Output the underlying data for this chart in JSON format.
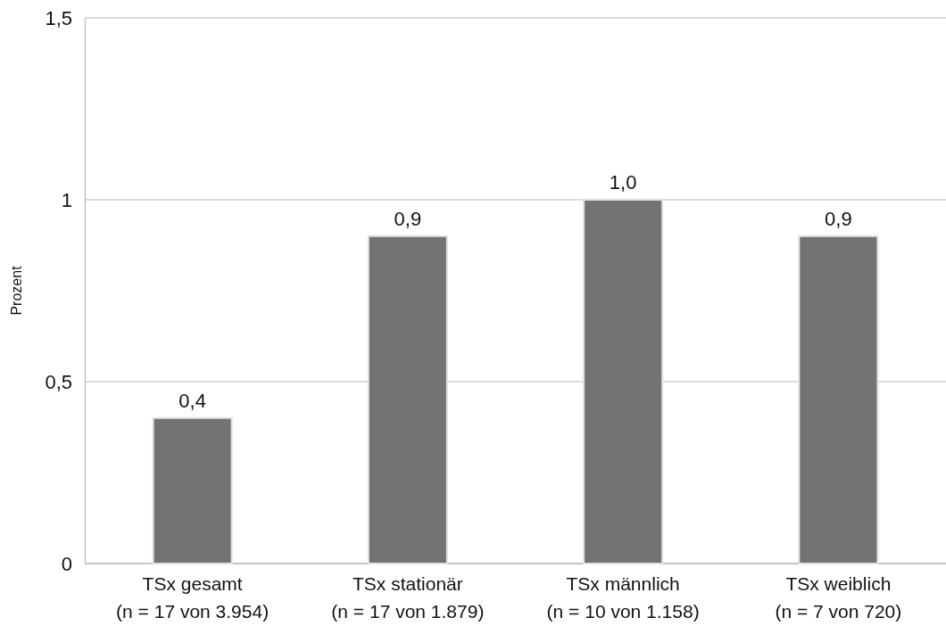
{
  "chart_data": {
    "type": "bar",
    "ylabel": "Prozent",
    "categories": [
      "TSx gesamt\n(n = 17 von 3.954)",
      "TSx stationär\n(n = 17 von 1.879)",
      "TSx männlich\n(n = 10 von 1.158)",
      "TSx weiblich\n(n = 7 von 720)"
    ],
    "values": [
      0.4,
      0.9,
      1.0,
      0.9
    ],
    "value_labels": [
      "0,4",
      "0,9",
      "1,0",
      "0,9"
    ],
    "color": "#737373",
    "ylim": [
      0,
      1.5
    ],
    "yticks": [
      0,
      {
        "value": 0.5,
        "label": "0,5"
      },
      1,
      {
        "value": 1.5,
        "label": "1,5"
      }
    ],
    "grid": "y"
  }
}
